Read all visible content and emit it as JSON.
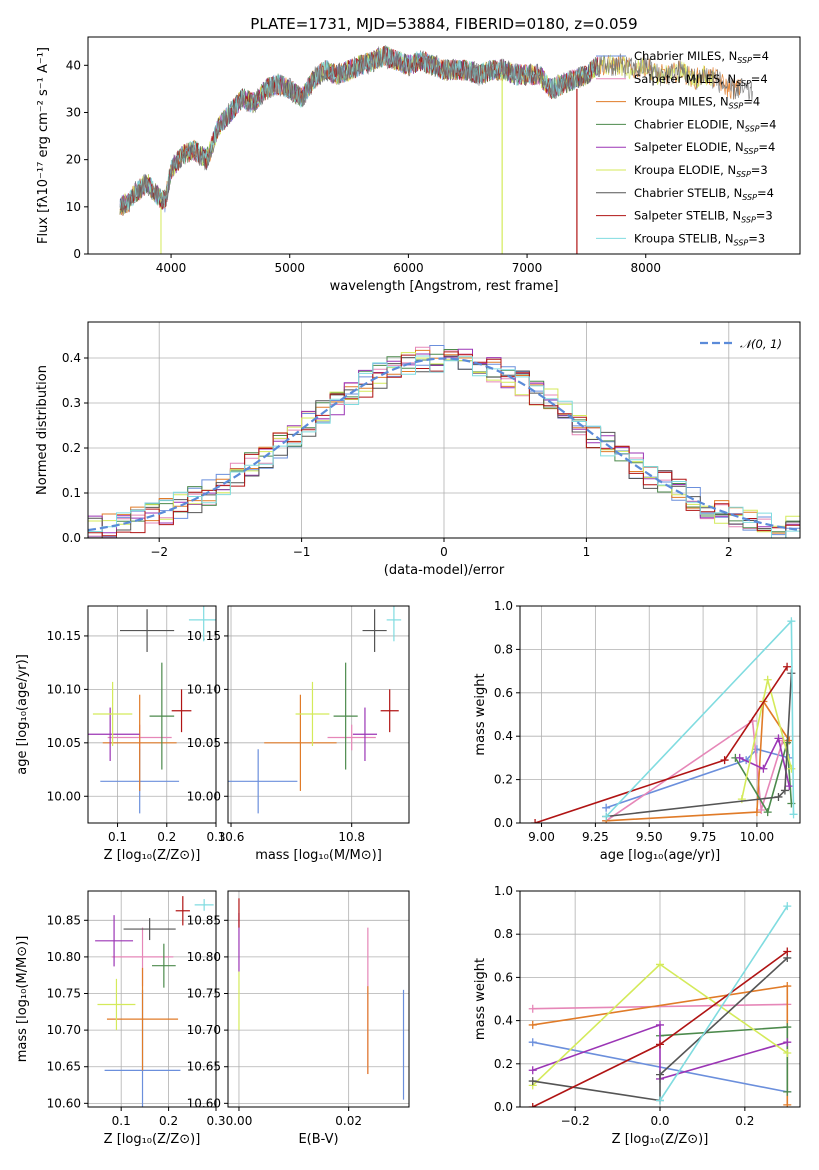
{
  "colors": {
    "chabrier_miles": "#6b8fdc",
    "salpeter_miles": "#e687b8",
    "kroupa_miles": "#e07b28",
    "chabrier_elodie": "#4c8a4c",
    "salpeter_elodie": "#9b35b5",
    "kroupa_elodie": "#d4ea5a",
    "chabrier_stelib": "#555555",
    "salpeter_stelib": "#b01414",
    "kroupa_stelib": "#80dce0",
    "normal": "#5b8bd9"
  },
  "chart_data": [
    {
      "type": "line",
      "title": "PLATE=1731, MJD=53884, FIBERID=0180, z=0.059",
      "xlabel": "wavelength [Angstrom, rest frame]",
      "ylabel": "Flux [fλ10⁻¹⁷ erg cm⁻² s⁻¹ A⁻¹]",
      "xlim": [
        3300,
        9300
      ],
      "ylim": [
        0,
        46
      ],
      "xticks": [
        "4000",
        "5000",
        "6000",
        "7000",
        "8000"
      ],
      "yticks": [
        "0",
        "10",
        "20",
        "30",
        "40"
      ],
      "legend_position": "top-right",
      "legend": [
        {
          "key": "chabrier_miles",
          "label": "Chabrier MILES, N",
          "sub": "SSP",
          "suffix": "=4"
        },
        {
          "key": "salpeter_miles",
          "label": "Salpeter MILES, N",
          "sub": "SSP",
          "suffix": "=4"
        },
        {
          "key": "kroupa_miles",
          "label": "Kroupa MILES, N",
          "sub": "SSP",
          "suffix": "=4"
        },
        {
          "key": "chabrier_elodie",
          "label": "Chabrier ELODIE, N",
          "sub": "SSP",
          "suffix": "=4"
        },
        {
          "key": "salpeter_elodie",
          "label": "Salpeter ELODIE, N",
          "sub": "SSP",
          "suffix": "=4"
        },
        {
          "key": "kroupa_elodie",
          "label": "Kroupa ELODIE, N",
          "sub": "SSP",
          "suffix": "=3"
        },
        {
          "key": "chabrier_stelib",
          "label": "Chabrier STELIB, N",
          "sub": "SSP",
          "suffix": "=4"
        },
        {
          "key": "salpeter_stelib",
          "label": "Salpeter STELIB, N",
          "sub": "SSP",
          "suffix": "=3"
        },
        {
          "key": "kroupa_stelib",
          "label": "Kroupa STELIB, N",
          "sub": "SSP",
          "suffix": "=3"
        }
      ],
      "spectrum_x": [
        3570,
        3650,
        3700,
        3800,
        3900,
        3950,
        4000,
        4100,
        4200,
        4300,
        4400,
        4500,
        4600,
        4700,
        4800,
        4900,
        5000,
        5100,
        5200,
        5300,
        5400,
        5500,
        5600,
        5700,
        5800,
        5900,
        6000,
        6100,
        6200,
        6300,
        6400,
        6500,
        6600,
        6700,
        6800,
        6900,
        7000,
        7100,
        7200,
        7300,
        7400,
        7500,
        7600,
        7700,
        7800,
        7900,
        8000,
        8100,
        8200,
        8300,
        8400,
        8500,
        8600,
        8700,
        8800,
        8900
      ],
      "spectrum_y": [
        10,
        11,
        13,
        15,
        12,
        11,
        18,
        21,
        22,
        20,
        27,
        30,
        33,
        32,
        35,
        36,
        35,
        33,
        37,
        39,
        38,
        39,
        40,
        41,
        42,
        41,
        40,
        41,
        40,
        39,
        39,
        39,
        38,
        39,
        39,
        38,
        38,
        38,
        35,
        36,
        37,
        38,
        40,
        40,
        40,
        39,
        40,
        38,
        38,
        39,
        37,
        38,
        37,
        35,
        35,
        34
      ],
      "series_end": {
        "kroupa_elodie": 8570,
        "kroupa_miles": 8800
      }
    },
    {
      "type": "bar",
      "xlabel": "(data-model)/error",
      "ylabel": "Normed distribution",
      "xlim": [
        -2.5,
        2.5
      ],
      "ylim": [
        0,
        0.48
      ],
      "xticks": [
        "−2",
        "−1",
        "0",
        "1",
        "2"
      ],
      "yticks": [
        "0.0",
        "0.1",
        "0.2",
        "0.3",
        "0.4"
      ],
      "legend_position": "top-right",
      "legend": [
        {
          "key": "normal",
          "label": "𝒩(0, 1)"
        }
      ],
      "bin_width": 0.1
    },
    {
      "type": "scatter",
      "xlabel": "Z [log₁₀(Z/Z⊙)]",
      "ylabel": "age  [log₁₀(age/yr)]",
      "xlim": [
        0.04,
        0.3
      ],
      "ylim": [
        9.975,
        10.178
      ],
      "xticks": [
        "0.1",
        "0.2",
        "0.3"
      ],
      "yticks": [
        "10.00",
        "10.05",
        "10.10",
        "10.15"
      ],
      "points": [
        {
          "key": "chabrier_miles",
          "x": 0.145,
          "y": 10.014,
          "xerr": 0.08,
          "yerr": 0.03
        },
        {
          "key": "salpeter_miles",
          "x": 0.145,
          "y": 10.055,
          "xerr": 0.065,
          "yerr": 0.012
        },
        {
          "key": "kroupa_miles",
          "x": 0.145,
          "y": 10.05,
          "xerr": 0.075,
          "yerr": 0.045
        },
        {
          "key": "chabrier_elodie",
          "x": 0.19,
          "y": 10.075,
          "xerr": 0.025,
          "yerr": 0.05
        },
        {
          "key": "salpeter_elodie",
          "x": 0.085,
          "y": 10.058,
          "xerr": 0.06,
          "yerr": 0.025
        },
        {
          "key": "kroupa_elodie",
          "x": 0.09,
          "y": 10.077,
          "xerr": 0.04,
          "yerr": 0.03
        },
        {
          "key": "chabrier_stelib",
          "x": 0.16,
          "y": 10.155,
          "xerr": 0.055,
          "yerr": 0.02
        },
        {
          "key": "salpeter_stelib",
          "x": 0.23,
          "y": 10.08,
          "xerr": 0.02,
          "yerr": 0.02
        },
        {
          "key": "kroupa_stelib",
          "x": 0.275,
          "y": 10.165,
          "xerr": 0.03,
          "yerr": 0.02
        }
      ]
    },
    {
      "type": "scatter",
      "xlabel": "mass [log₁₀(M/M⊙)]",
      "ylabel": "",
      "xlim": [
        10.595,
        10.895
      ],
      "ylim": [
        9.975,
        10.178
      ],
      "xticks": [
        "10.6",
        "10.8"
      ],
      "yticks": [
        "10.00",
        "10.05",
        "10.10",
        "10.15"
      ],
      "points": [
        {
          "key": "chabrier_miles",
          "x": 10.645,
          "y": 10.014,
          "xerr": 0.065,
          "yerr": 0.03
        },
        {
          "key": "salpeter_miles",
          "x": 10.8,
          "y": 10.055,
          "xerr": 0.04,
          "yerr": 0.012
        },
        {
          "key": "kroupa_miles",
          "x": 10.715,
          "y": 10.05,
          "xerr": 0.06,
          "yerr": 0.045
        },
        {
          "key": "chabrier_elodie",
          "x": 10.79,
          "y": 10.075,
          "xerr": 0.02,
          "yerr": 0.05
        },
        {
          "key": "salpeter_elodie",
          "x": 10.822,
          "y": 10.058,
          "xerr": 0.02,
          "yerr": 0.025
        },
        {
          "key": "kroupa_elodie",
          "x": 10.735,
          "y": 10.077,
          "xerr": 0.028,
          "yerr": 0.03
        },
        {
          "key": "chabrier_stelib",
          "x": 10.838,
          "y": 10.155,
          "xerr": 0.02,
          "yerr": 0.02
        },
        {
          "key": "salpeter_stelib",
          "x": 10.863,
          "y": 10.08,
          "xerr": 0.015,
          "yerr": 0.02
        },
        {
          "key": "kroupa_stelib",
          "x": 10.87,
          "y": 10.165,
          "xerr": 0.012,
          "yerr": 0.02
        }
      ]
    },
    {
      "type": "line",
      "xlabel": "age  [log₁₀(age/yr)]",
      "ylabel": "mass weight",
      "xlim": [
        8.9,
        10.2
      ],
      "ylim": [
        0,
        1.0
      ],
      "xticks": [
        "9.00",
        "9.25",
        "9.50",
        "9.75",
        "10.00"
      ],
      "yticks": [
        "0.0",
        "0.2",
        "0.4",
        "0.6",
        "0.8",
        "1.0"
      ],
      "series": [
        {
          "key": "chabrier_miles",
          "x": [
            9.3,
            9.95,
            10.0,
            10.15
          ],
          "y": [
            0.07,
            0.29,
            0.34,
            0.3
          ]
        },
        {
          "key": "salpeter_miles",
          "x": [
            9.3,
            9.98,
            10.02,
            10.12
          ],
          "y": [
            0.01,
            0.47,
            0.06,
            0.38
          ]
        },
        {
          "key": "kroupa_miles",
          "x": [
            9.3,
            10.0,
            10.03,
            10.15
          ],
          "y": [
            0.01,
            0.05,
            0.56,
            0.38
          ]
        },
        {
          "key": "chabrier_elodie",
          "x": [
            9.9,
            10.05,
            10.14,
            10.16
          ],
          "y": [
            0.3,
            0.05,
            0.37,
            0.09
          ]
        },
        {
          "key": "salpeter_elodie",
          "x": [
            9.92,
            10.03,
            10.1,
            10.15
          ],
          "y": [
            0.3,
            0.25,
            0.39,
            0.17
          ]
        },
        {
          "key": "kroupa_elodie",
          "x": [
            9.93,
            10.05,
            10.16
          ],
          "y": [
            0.11,
            0.66,
            0.25
          ]
        },
        {
          "key": "chabrier_stelib",
          "x": [
            9.3,
            10.1,
            10.13,
            10.16
          ],
          "y": [
            0.03,
            0.12,
            0.15,
            0.69
          ]
        },
        {
          "key": "salpeter_stelib",
          "x": [
            8.97,
            9.85,
            10.14
          ],
          "y": [
            0.0,
            0.29,
            0.72
          ]
        },
        {
          "key": "kroupa_stelib",
          "x": [
            9.3,
            10.16,
            10.17
          ],
          "y": [
            0.03,
            0.93,
            0.04
          ]
        }
      ]
    },
    {
      "type": "scatter",
      "xlabel": "Z [log₁₀(Z/Z⊙)]",
      "ylabel": "mass [log₁₀(M/M⊙)]",
      "xlim": [
        0.03,
        0.3
      ],
      "ylim": [
        10.595,
        10.89
      ],
      "xticks": [
        "0.1",
        "0.2",
        "0.3"
      ],
      "yticks": [
        "10.60",
        "10.65",
        "10.70",
        "10.75",
        "10.80",
        "10.85"
      ],
      "points": [
        {
          "key": "chabrier_miles",
          "x": 0.145,
          "y": 10.645,
          "xerr": 0.08,
          "yerr": 0.11
        },
        {
          "key": "salpeter_miles",
          "x": 0.145,
          "y": 10.8,
          "xerr": 0.065,
          "yerr": 0.04
        },
        {
          "key": "kroupa_miles",
          "x": 0.145,
          "y": 10.715,
          "xerr": 0.075,
          "yerr": 0.07
        },
        {
          "key": "chabrier_elodie",
          "x": 0.19,
          "y": 10.788,
          "xerr": 0.025,
          "yerr": 0.03
        },
        {
          "key": "salpeter_elodie",
          "x": 0.085,
          "y": 10.822,
          "xerr": 0.04,
          "yerr": 0.035
        },
        {
          "key": "kroupa_elodie",
          "x": 0.09,
          "y": 10.735,
          "xerr": 0.04,
          "yerr": 0.035
        },
        {
          "key": "chabrier_stelib",
          "x": 0.16,
          "y": 10.838,
          "xerr": 0.055,
          "yerr": 0.015
        },
        {
          "key": "salpeter_stelib",
          "x": 0.23,
          "y": 10.863,
          "xerr": 0.015,
          "yerr": 0.02
        },
        {
          "key": "kroupa_stelib",
          "x": 0.275,
          "y": 10.871,
          "xerr": 0.02,
          "yerr": 0.008
        }
      ]
    },
    {
      "type": "scatter",
      "xlabel": "E(B-V)",
      "ylabel": "",
      "xlim": [
        -0.002,
        0.031
      ],
      "ylim": [
        10.595,
        10.89
      ],
      "xticks": [
        "0.00",
        "0.02"
      ],
      "yticks": [
        "10.60",
        "10.65",
        "10.70",
        "10.75",
        "10.80",
        "10.85"
      ],
      "points": [
        {
          "key": "chabrier_miles",
          "x": 0.03,
          "y": 10.68,
          "xerr": 0,
          "yerr": 0.075
        },
        {
          "key": "salpeter_miles",
          "x": 0.0235,
          "y": 10.74,
          "xerr": 0,
          "yerr": 0.1
        },
        {
          "key": "kroupa_miles",
          "x": 0.0235,
          "y": 10.7,
          "xerr": 0,
          "yerr": 0.06
        },
        {
          "key": "salpeter_elodie",
          "x": 0.0,
          "y": 10.82,
          "xerr": 0,
          "yerr": 0.04
        },
        {
          "key": "kroupa_elodie",
          "x": 0.0,
          "y": 10.74,
          "xerr": 0,
          "yerr": 0.04
        },
        {
          "key": "salpeter_stelib",
          "x": 0.0,
          "y": 10.86,
          "xerr": 0,
          "yerr": 0.02
        }
      ]
    },
    {
      "type": "line",
      "xlabel": "Z [log₁₀(Z/Z⊙)]",
      "ylabel": "mass weight",
      "xlim": [
        -0.33,
        0.33
      ],
      "ylim": [
        0,
        1.0
      ],
      "xticks": [
        "−0.2",
        "0.0",
        "0.2"
      ],
      "yticks": [
        "0.0",
        "0.2",
        "0.4",
        "0.6",
        "0.8",
        "1.0"
      ],
      "series": [
        {
          "key": "chabrier_miles",
          "x": [
            -0.3,
            0.3
          ],
          "y": [
            0.3,
            0.07
          ]
        },
        {
          "key": "salpeter_miles",
          "x": [
            -0.3,
            0.3
          ],
          "y": [
            0.455,
            0.475
          ]
        },
        {
          "key": "kroupa_miles",
          "x": [
            -0.3,
            0.3,
            0.3
          ],
          "y": [
            0.38,
            0.56,
            0.01
          ]
        },
        {
          "key": "chabrier_elodie",
          "x": [
            0.0,
            0.3,
            0.3
          ],
          "y": [
            0.33,
            0.37,
            0.07
          ]
        },
        {
          "key": "salpeter_elodie",
          "x": [
            -0.3,
            0.0,
            0.0,
            0.3
          ],
          "y": [
            0.17,
            0.38,
            0.13,
            0.3
          ]
        },
        {
          "key": "kroupa_elodie",
          "x": [
            -0.3,
            0.0,
            0.3
          ],
          "y": [
            0.1,
            0.66,
            0.25
          ]
        },
        {
          "key": "chabrier_stelib",
          "x": [
            -0.3,
            0.0,
            0.0,
            0.3
          ],
          "y": [
            0.12,
            0.03,
            0.15,
            0.69
          ]
        },
        {
          "key": "salpeter_stelib",
          "x": [
            -0.3,
            0.0,
            0.3
          ],
          "y": [
            0.0,
            0.29,
            0.72
          ]
        },
        {
          "key": "kroupa_stelib",
          "x": [
            0.0,
            0.3
          ],
          "y": [
            0.03,
            0.93
          ]
        }
      ]
    }
  ]
}
